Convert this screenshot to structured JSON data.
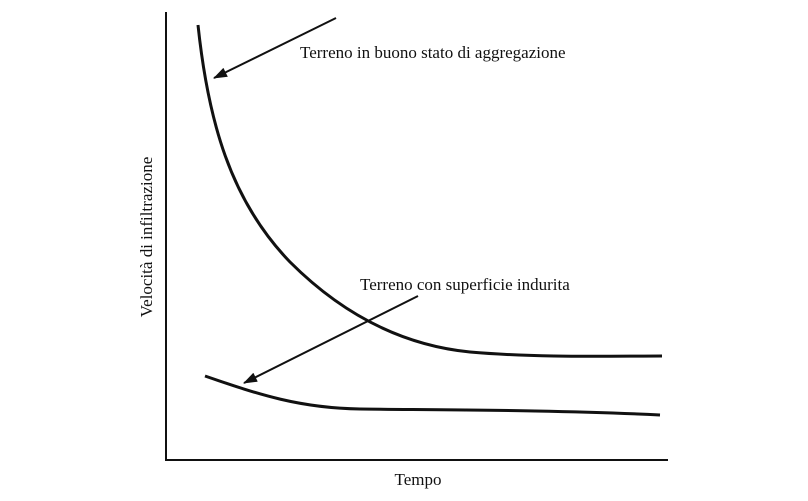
{
  "axis_labels": {
    "y": "Velocità di infiltrazione",
    "x": "Tempo"
  },
  "annotations": [
    "Terreno in buono stato di aggregazione",
    "Terreno con superficie indurita"
  ]
}
